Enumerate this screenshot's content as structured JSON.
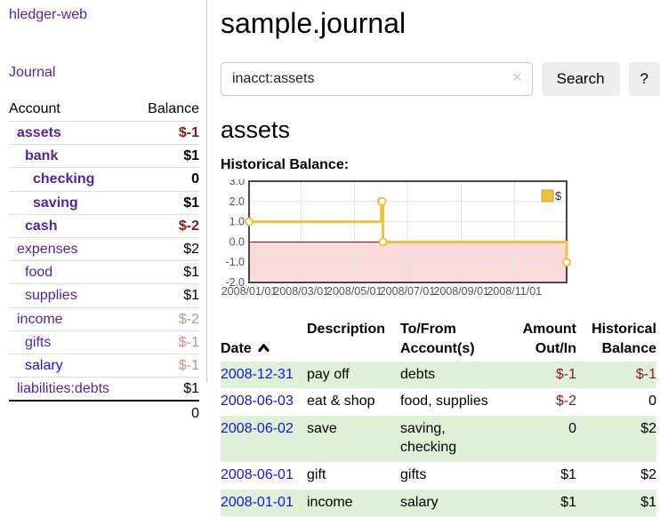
{
  "colors": {
    "link_purple": "#54259c",
    "link_blue": "#1414dd",
    "negative_strong": "#8f1616",
    "negative_dim": "#c79090",
    "row_green": "#dff0d8",
    "clear_icon": "#cbc3e0",
    "chart_gold": "#edc240",
    "chart_gold_dark": "#c8a02e",
    "chart_negative_fill": "#fbdada",
    "chart_zero_line": "#8b0000",
    "grid_line": "#e3e3e3",
    "chart_border": "#474747",
    "tick_text": "#545454"
  },
  "app": {
    "brand": "hledger-web"
  },
  "sidebar": {
    "journal_label": "Journal",
    "accounts": {
      "header_account": "Account",
      "header_balance": "Balance",
      "rows": [
        {
          "name": "assets",
          "indent": 1,
          "bold": true,
          "balance": "$-1",
          "negative": true
        },
        {
          "name": "bank",
          "indent": 2,
          "bold": true,
          "balance": "$1",
          "negative": false
        },
        {
          "name": "checking",
          "indent": 3,
          "bold": true,
          "balance": "0",
          "negative": false
        },
        {
          "name": "saving",
          "indent": 3,
          "bold": true,
          "balance": "$1",
          "negative": false
        },
        {
          "name": "cash",
          "indent": 2,
          "bold": true,
          "balance": "$-2",
          "negative": true
        },
        {
          "name": "expenses",
          "indent": 1,
          "bold": false,
          "balance": "$2",
          "negative": false
        },
        {
          "name": "food",
          "indent": 2,
          "bold": false,
          "balance": "$1",
          "negative": false
        },
        {
          "name": "supplies",
          "indent": 2,
          "bold": false,
          "balance": "$1",
          "negative": false
        },
        {
          "name": "income",
          "indent": 1,
          "bold": false,
          "balance": "$-2",
          "negative": true
        },
        {
          "name": "gifts",
          "indent": 2,
          "bold": false,
          "balance": "$-1",
          "negative": true
        },
        {
          "name": "salary",
          "indent": 2,
          "bold": false,
          "balance": "$-1",
          "negative": true,
          "link_style": "blue"
        },
        {
          "name": "liabilities:debts",
          "indent": 1,
          "bold": false,
          "balance": "$1",
          "negative": false
        }
      ],
      "total": "0"
    }
  },
  "main": {
    "title": "sample.journal",
    "search": {
      "value": "inacct:assets",
      "clear_icon": "✕",
      "button_label": "Search",
      "help_label": "?"
    },
    "account_heading": "assets",
    "chart_label": "Historical Balance:"
  },
  "chart_data": {
    "type": "line",
    "title": "Historical Balance",
    "step": true,
    "grid": true,
    "legend_position": "top-right",
    "negative_region": true,
    "x_range": [
      "2008-01-01",
      "2008-12-31"
    ],
    "ylim": [
      -2,
      3
    ],
    "y_ticks": [
      {
        "label": "3.0",
        "value": 3
      },
      {
        "label": "2.0",
        "value": 2
      },
      {
        "label": "1.0",
        "value": 1
      },
      {
        "label": "0.0",
        "value": 0
      },
      {
        "label": "-1.0",
        "value": -1
      },
      {
        "label": "-2.0",
        "value": -2
      }
    ],
    "x_ticks": [
      {
        "label": "2008/01/01",
        "date": "2008-01-01"
      },
      {
        "label": "2008/03/01",
        "date": "2008-03-01"
      },
      {
        "label": "2008/05/01",
        "date": "2008-05-01"
      },
      {
        "label": "2008/07/01",
        "date": "2008-07-01"
      },
      {
        "label": "2008/09/01",
        "date": "2008-09-01"
      },
      {
        "label": "2008/11/01",
        "date": "2008-11-01"
      }
    ],
    "series": [
      {
        "name": "$",
        "color": "#edc240",
        "points": [
          [
            "2008-01-01",
            1
          ],
          [
            "2008-06-01",
            2
          ],
          [
            "2008-06-02",
            2
          ],
          [
            "2008-06-03",
            0
          ],
          [
            "2008-12-31",
            -1
          ]
        ]
      }
    ]
  },
  "register": {
    "sort": "ascending",
    "headers": {
      "date": "Date",
      "description": "Description",
      "accounts": "To/From\nAccount(s)",
      "amount": "Amount\nOut/In",
      "balance": "Historical\nBalance"
    },
    "rows": [
      {
        "date": "2008-12-31",
        "description": "pay off",
        "accounts": "debts",
        "amount": "$-1",
        "amount_negative": true,
        "balance": "$-1",
        "balance_negative": true,
        "shaded": true
      },
      {
        "date": "2008-06-03",
        "description": "eat & shop",
        "accounts": "food, supplies",
        "amount": "$-2",
        "amount_negative": true,
        "balance": "0",
        "balance_negative": false,
        "shaded": false
      },
      {
        "date": "2008-06-02",
        "description": "save",
        "accounts": "saving,\nchecking",
        "amount": "0",
        "amount_negative": false,
        "balance": "$2",
        "balance_negative": false,
        "shaded": true
      },
      {
        "date": "2008-06-01",
        "description": "gift",
        "accounts": "gifts",
        "amount": "$1",
        "amount_negative": false,
        "balance": "$2",
        "balance_negative": false,
        "shaded": false
      },
      {
        "date": "2008-01-01",
        "description": "income",
        "accounts": "salary",
        "amount": "$1",
        "amount_negative": false,
        "balance": "$1",
        "balance_negative": false,
        "shaded": true
      }
    ]
  }
}
